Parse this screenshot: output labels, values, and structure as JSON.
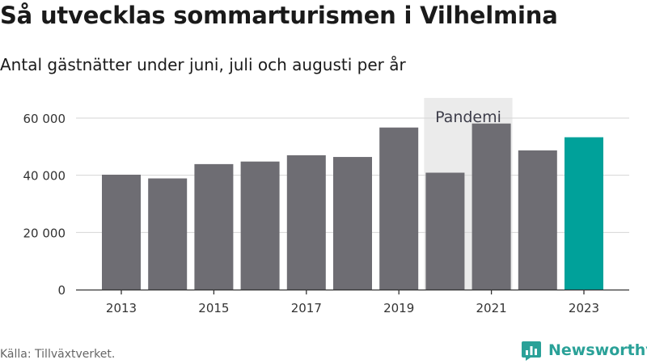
{
  "chart_data": {
    "type": "bar",
    "title": "Så utvecklas sommarturismen i Vilhelmina",
    "subtitle": "Antal gästnätter under juni, juli och augusti per år",
    "categories": [
      "2013",
      "2014",
      "2015",
      "2016",
      "2017",
      "2018",
      "2019",
      "2020",
      "2021",
      "2022",
      "2023"
    ],
    "values": [
      40200,
      38900,
      43900,
      44800,
      47000,
      46400,
      56700,
      40900,
      58100,
      48700,
      53300
    ],
    "x_tick_labels": [
      "2013",
      "2015",
      "2017",
      "2019",
      "2021",
      "2023"
    ],
    "y_ticks": [
      0,
      20000,
      40000,
      60000
    ],
    "y_tick_labels": [
      "0",
      "20 000",
      "40 000",
      "60 000"
    ],
    "ylim": [
      0,
      66000
    ],
    "xlabel": "",
    "ylabel": "",
    "grid": true,
    "bar_color": "#6e6d73",
    "highlight_color": "#00a19a",
    "highlight_category": "2023",
    "annotation": {
      "label": "Pandemi",
      "from": "2020",
      "to": "2021",
      "color": "#ebebeb"
    }
  },
  "source": "Källa: Tillväxtverket.",
  "brand": {
    "name": "Newsworthy",
    "icon": "newsworthy-logo-icon",
    "color": "#2aa198"
  }
}
